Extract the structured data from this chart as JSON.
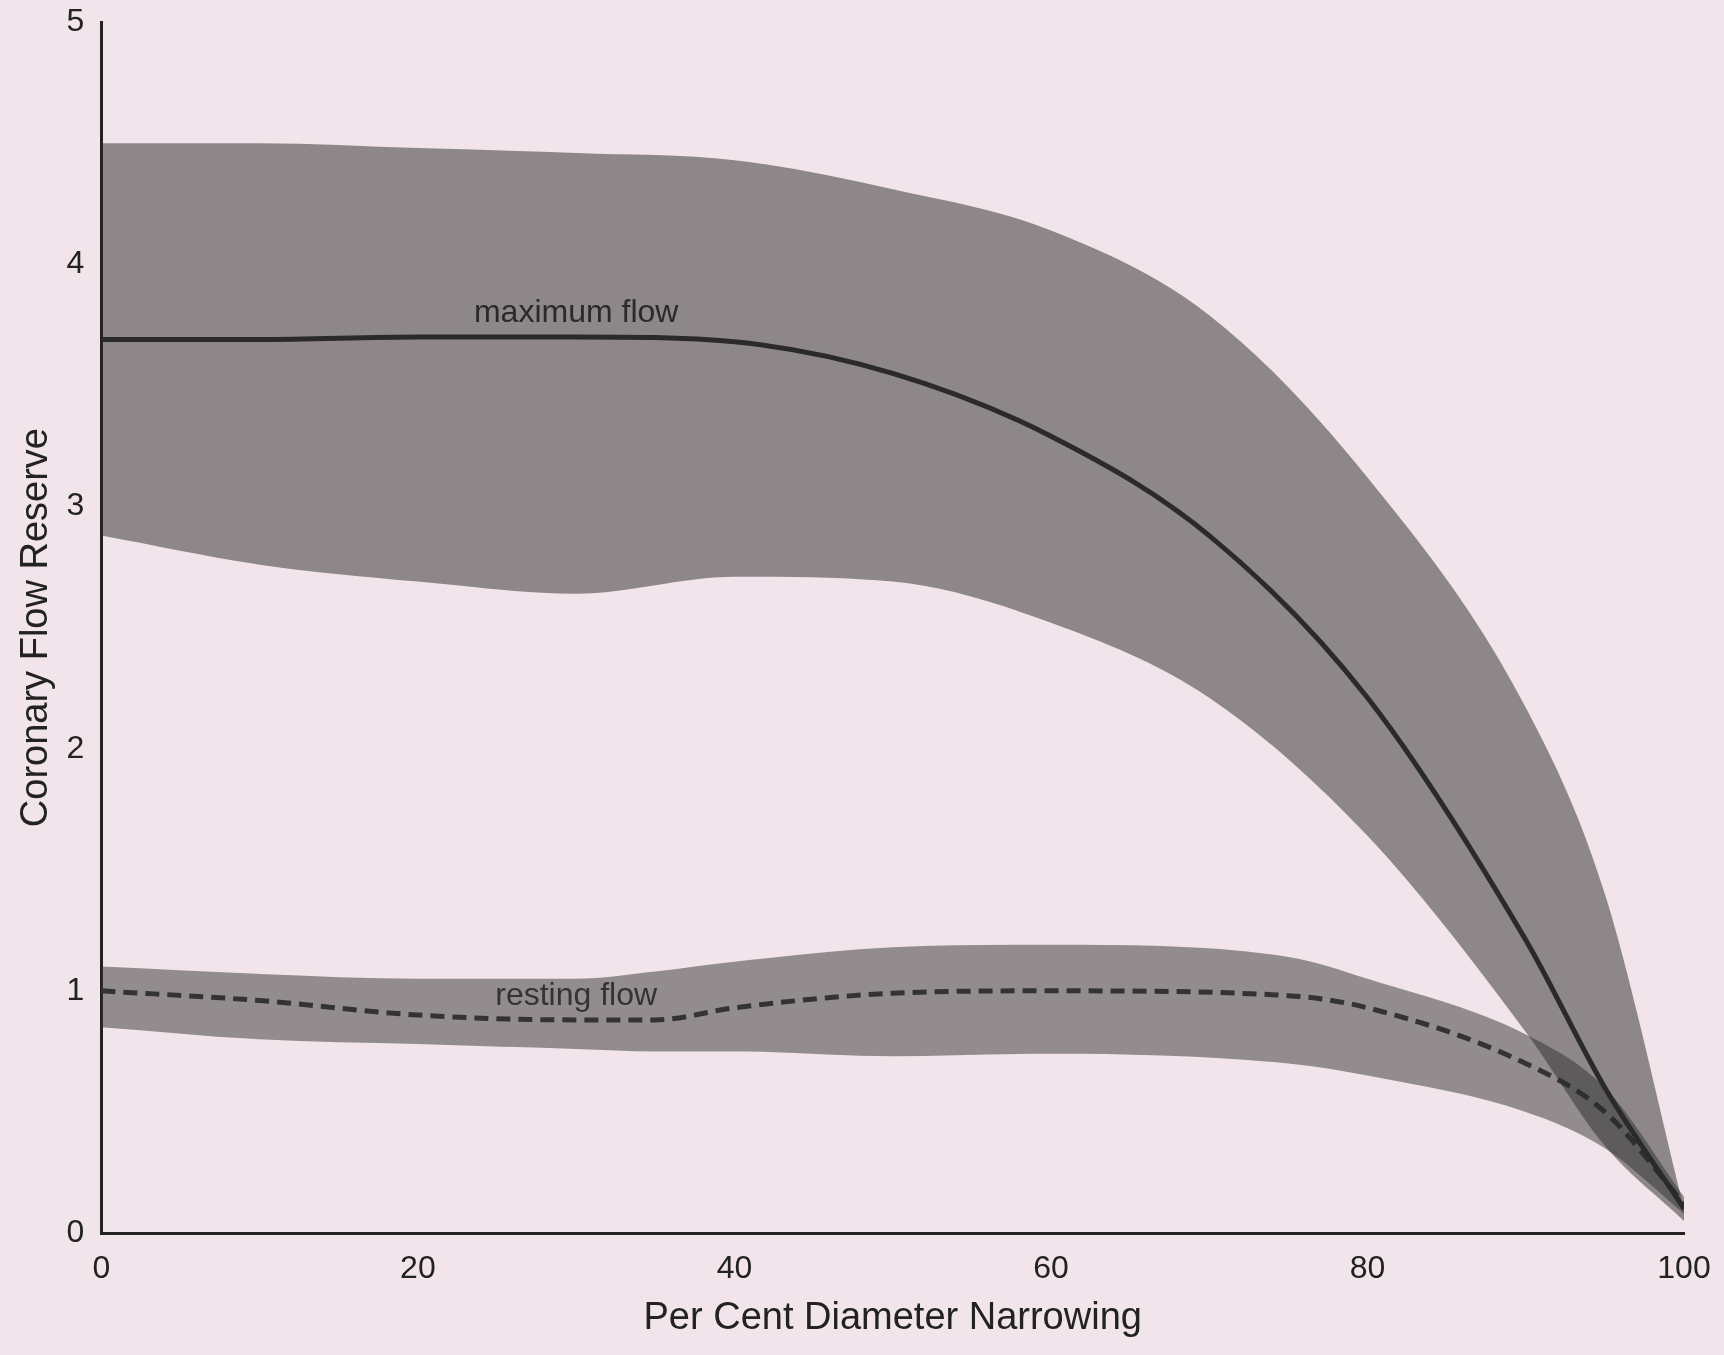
{
  "chart_data": {
    "type": "line",
    "xlabel": "Per Cent Diameter Narrowing",
    "ylabel": "Coronary Flow Reserve",
    "xlim": [
      0,
      100
    ],
    "xticks": [
      0,
      20,
      40,
      60,
      80,
      100
    ],
    "ylim": [
      0,
      5
    ],
    "yticks": [
      0,
      1,
      2,
      3,
      4,
      5
    ],
    "grid": false,
    "legend": false,
    "marker": "none",
    "series": [
      {
        "name": "maximum flow",
        "color": "#2a2a2a",
        "line_style": "solid",
        "x": [
          0,
          10,
          20,
          30,
          40,
          50,
          60,
          70,
          80,
          90,
          95,
          100
        ],
        "values": [
          3.69,
          3.69,
          3.7,
          3.7,
          3.68,
          3.55,
          3.29,
          2.88,
          2.21,
          1.21,
          0.6,
          0.1
        ],
        "upper": [
          4.5,
          4.5,
          4.48,
          4.46,
          4.43,
          4.31,
          4.14,
          3.79,
          3.12,
          2.17,
          1.4,
          0.1
        ],
        "lower": [
          2.88,
          2.76,
          2.69,
          2.64,
          2.71,
          2.69,
          2.52,
          2.21,
          1.64,
          0.83,
          0.36,
          0.05
        ]
      },
      {
        "name": "resting flow",
        "color": "#333333",
        "line_style": "dashed",
        "x": [
          0,
          10,
          20,
          30,
          35,
          40,
          50,
          60,
          75,
          80,
          90,
          95,
          100
        ],
        "values": [
          1.0,
          0.96,
          0.9,
          0.88,
          0.88,
          0.93,
          0.99,
          1.0,
          0.98,
          0.93,
          0.7,
          0.5,
          0.12
        ],
        "upper": [
          1.1,
          1.07,
          1.05,
          1.05,
          1.08,
          1.12,
          1.18,
          1.19,
          1.14,
          1.05,
          0.82,
          0.6,
          0.15
        ],
        "lower": [
          0.85,
          0.8,
          0.78,
          0.76,
          0.75,
          0.75,
          0.73,
          0.74,
          0.7,
          0.65,
          0.5,
          0.35,
          0.08
        ]
      }
    ]
  }
}
